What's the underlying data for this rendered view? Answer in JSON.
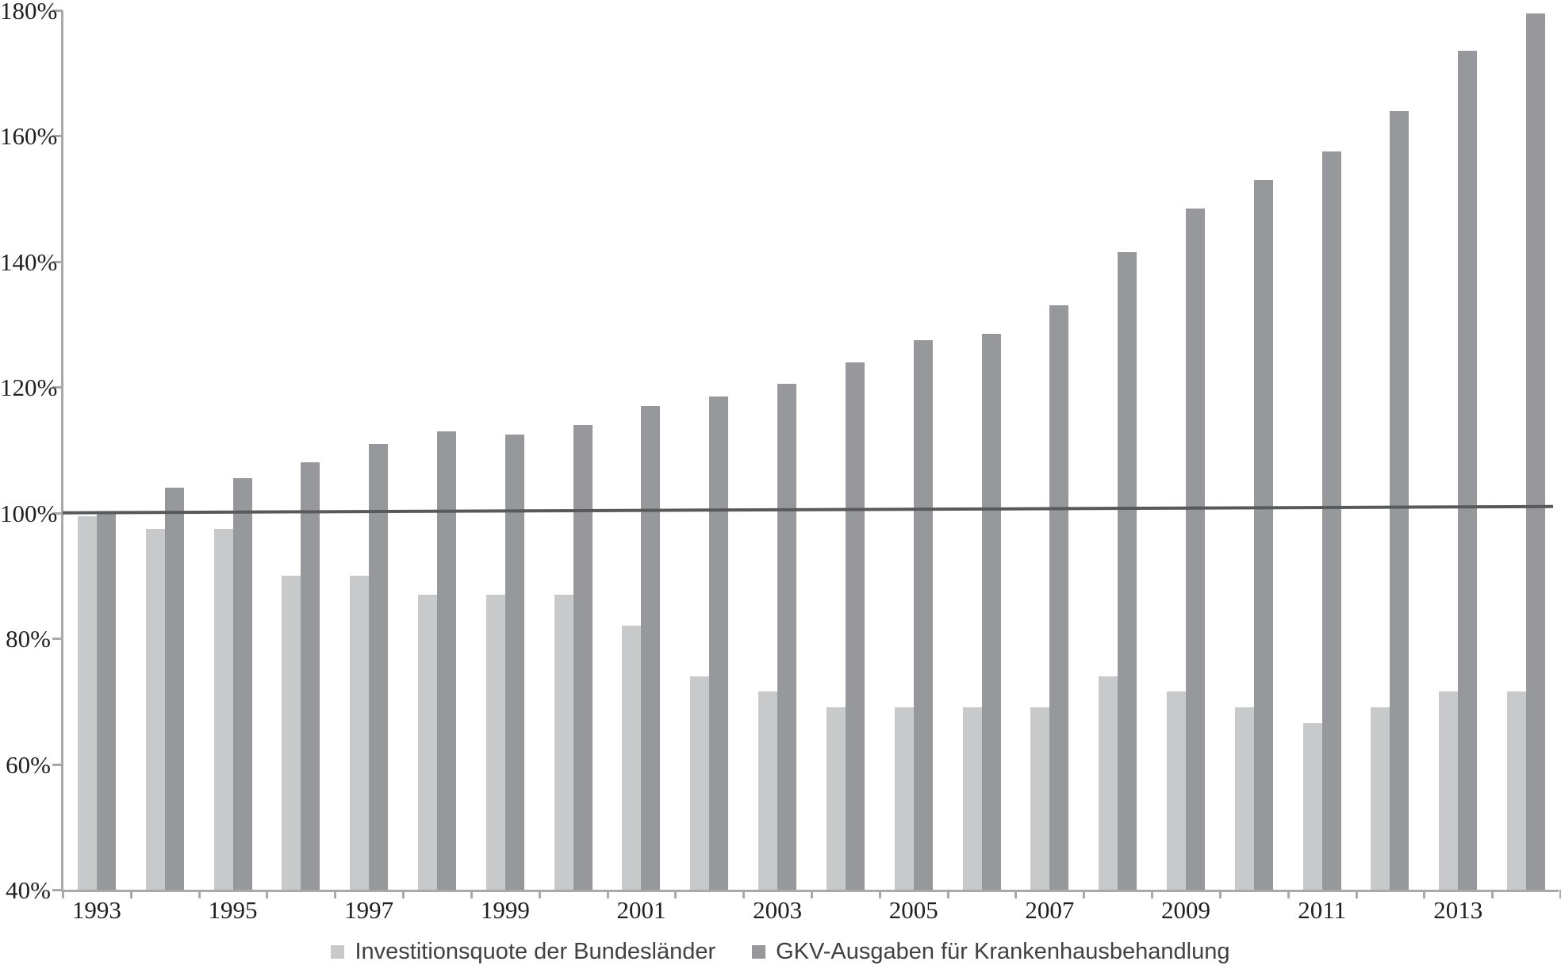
{
  "chart_data": {
    "type": "bar",
    "title": "",
    "categories": [
      "1993",
      "1994",
      "1995",
      "1996",
      "1997",
      "1998",
      "1999",
      "2000",
      "2001",
      "2002",
      "2003",
      "2004",
      "2005",
      "2006",
      "2007",
      "2008",
      "2009",
      "2010",
      "2011",
      "2012",
      "2013",
      "2014"
    ],
    "x_tick_labels": [
      "1993",
      "1995",
      "1997",
      "1999",
      "2001",
      "2003",
      "2005",
      "2007",
      "2009",
      "2011",
      "2013"
    ],
    "y_tick_labels": [
      "180%",
      "160%",
      "140%",
      "120%",
      "100%",
      "80%",
      "60%",
      "40%"
    ],
    "y_tick_values": [
      180,
      160,
      140,
      120,
      100,
      80,
      60,
      40
    ],
    "ylim": [
      40,
      180
    ],
    "grid": false,
    "legend_position": "bottom-center",
    "series": [
      {
        "name": "Investitionsquote der Bundesländer",
        "color": "#c8c9ca",
        "values": [
          99.5,
          97.5,
          97.5,
          90,
          90,
          87,
          87,
          87,
          82,
          74,
          71.5,
          69,
          69,
          69,
          69,
          74,
          71.5,
          69,
          66.5,
          69,
          71.5,
          71.5
        ]
      },
      {
        "name": "GKV-Ausgaben für Krankenhausbehandlung",
        "color": "#96989b",
        "values": [
          100,
          104,
          105.5,
          108,
          111,
          113,
          112.5,
          114,
          117,
          118.5,
          120.5,
          124,
          127.5,
          128.5,
          133,
          141.5,
          148.5,
          153,
          157.5,
          164,
          173.5,
          179.5
        ]
      }
    ],
    "reference_line": {
      "start_value": 100,
      "end_value": 101,
      "color": "#58595b"
    }
  },
  "legend": {
    "items": [
      {
        "label": "Investitionsquote der Bundesländer",
        "color": "#c8c9ca"
      },
      {
        "label": "GKV-Ausgaben für Krankenhausbehandlung",
        "color": "#96989b"
      }
    ]
  },
  "colors": {
    "axis": "#a7a9ac",
    "axis_text": "#231f20",
    "legend_text": "#414042",
    "background": "#ffffff"
  }
}
